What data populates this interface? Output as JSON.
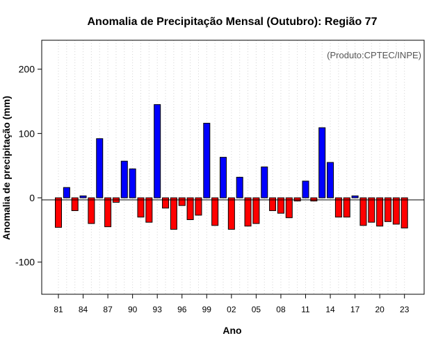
{
  "chart_data": {
    "type": "bar",
    "title": "Anomalia de Precipitação Mensal (Outubro): Região 77",
    "xlabel": "Ano",
    "ylabel": "Anomalia de precipitação (mm)",
    "annotation": "(Produto:CPTEC/INPE)",
    "ylim": [
      -150,
      245
    ],
    "yticks": [
      -100,
      0,
      100,
      200
    ],
    "grid": "vertical dotted",
    "positive_color": "#0000ff",
    "negative_color": "#ff0000",
    "categories": [
      "1981",
      "1982",
      "1983",
      "1984",
      "1985",
      "1986",
      "1987",
      "1988",
      "1989",
      "1990",
      "1991",
      "1992",
      "1993",
      "1994",
      "1995",
      "1996",
      "1997",
      "1998",
      "1999",
      "2000",
      "2001",
      "2002",
      "2003",
      "2004",
      "2005",
      "2006",
      "2007",
      "2008",
      "2009",
      "2010",
      "2011",
      "2012",
      "2013",
      "2014",
      "2015",
      "2016",
      "2017",
      "2018",
      "2019",
      "2020",
      "2021",
      "2022",
      "2023"
    ],
    "xtick_labels": [
      {
        "index": 0,
        "label": "81"
      },
      {
        "index": 3,
        "label": "84"
      },
      {
        "index": 6,
        "label": "87"
      },
      {
        "index": 9,
        "label": "90"
      },
      {
        "index": 12,
        "label": "93"
      },
      {
        "index": 15,
        "label": "96"
      },
      {
        "index": 18,
        "label": "99"
      },
      {
        "index": 21,
        "label": "02"
      },
      {
        "index": 24,
        "label": "05"
      },
      {
        "index": 27,
        "label": "08"
      },
      {
        "index": 30,
        "label": "11"
      },
      {
        "index": 33,
        "label": "14"
      },
      {
        "index": 36,
        "label": "17"
      },
      {
        "index": 39,
        "label": "20"
      },
      {
        "index": 42,
        "label": "23"
      }
    ],
    "values": [
      -46,
      16,
      -20,
      3,
      -40,
      92,
      -45,
      -7,
      57,
      45,
      -30,
      -38,
      145,
      -16,
      -49,
      -12,
      -34,
      -27,
      116,
      -43,
      63,
      -49,
      32,
      -44,
      -40,
      48,
      -20,
      -24,
      -31,
      -5,
      26,
      -5,
      109,
      55,
      -30,
      -30,
      3,
      -43,
      -38,
      -44,
      -37,
      -41,
      -47
    ]
  }
}
